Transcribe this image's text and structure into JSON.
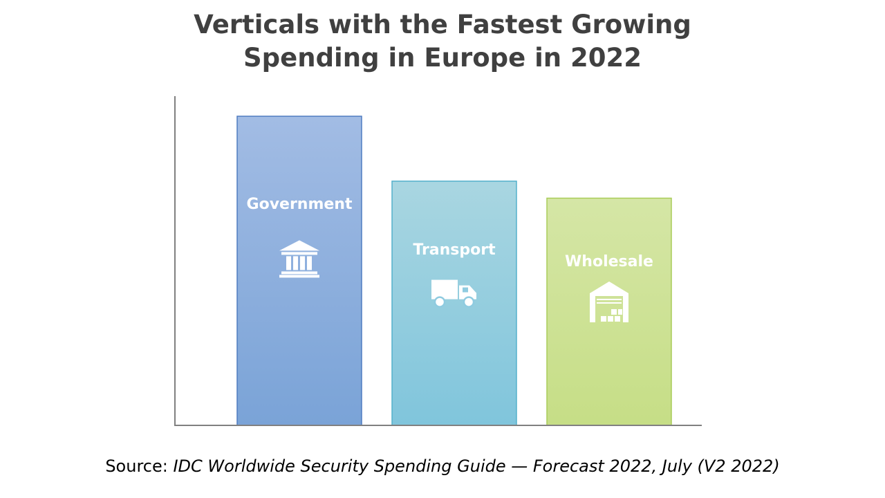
{
  "chart_data": {
    "type": "bar",
    "title": [
      "Verticals with the Fastest Growing",
      "Spending in Europe in 2022"
    ],
    "categories": [
      "Government",
      "Transport",
      "Wholesale"
    ],
    "values": [
      100,
      79,
      73.5
    ],
    "ylim": [
      0,
      106.5
    ],
    "xlabel": "",
    "ylabel": "",
    "grid": false,
    "icons": [
      "government-building-icon",
      "truck-icon",
      "warehouse-icon"
    ],
    "colors": [
      {
        "top": "#a2bce4",
        "bottom": "#7aa3d7",
        "stroke": "#4f7cc0"
      },
      {
        "top": "#a9d6e1",
        "bottom": "#80c5dc",
        "stroke": "#53b0cb"
      },
      {
        "top": "#d5e6a6",
        "bottom": "#c6de86",
        "stroke": "#a9cc58"
      }
    ]
  },
  "source": {
    "prefix": "Source: ",
    "reference": "IDC Worldwide Security Spending Guide — Forecast 2022, July (V2 2022)"
  }
}
